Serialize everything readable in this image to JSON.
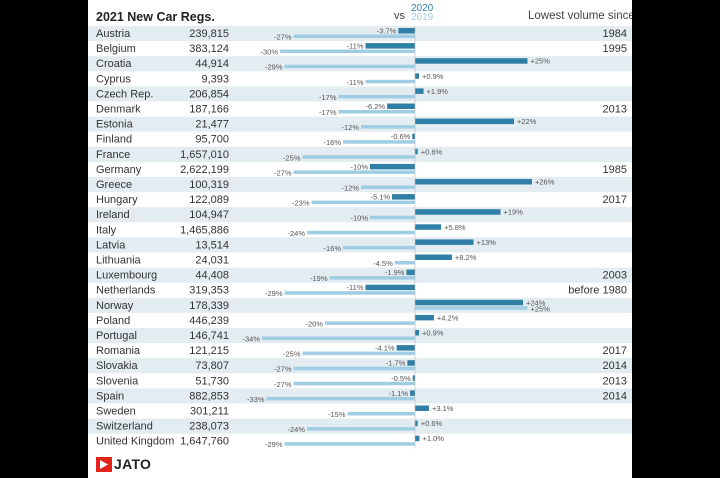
{
  "header": {
    "title": "2021 New Car Regs.",
    "vs": "vs",
    "legend_2020": "2020",
    "legend_2019": "2019",
    "lowest_volume_since": "Lowest volume since"
  },
  "logo": {
    "text": "JATO",
    "icon": "jato-logo-icon",
    "color": "#e2231a"
  },
  "colors": {
    "v2020": "#2f7fa6",
    "v2019": "#9fcde3",
    "stripe": "#e3ecf1"
  },
  "chart_data": {
    "type": "bar",
    "title": "2021 New Car Regs.",
    "series_names": [
      "2020",
      "2019"
    ],
    "rows": [
      {
        "country": "Austria",
        "regs": "239,815",
        "v2020": -3.7,
        "v2019": -27,
        "l2020": "-3.7%",
        "l2019": "-27%",
        "since": "1984"
      },
      {
        "country": "Belgium",
        "regs": "383,124",
        "v2020": -11,
        "v2019": -30,
        "l2020": "-11%",
        "l2019": "-30%",
        "since": "1995"
      },
      {
        "country": "Croatia",
        "regs": "44,914",
        "v2020": 25,
        "v2019": -29,
        "l2020": "+25%",
        "l2019": "-29%",
        "since": ""
      },
      {
        "country": "Cyprus",
        "regs": "9,393",
        "v2020": 0.9,
        "v2019": -11,
        "l2020": "+0.9%",
        "l2019": "-11%",
        "since": ""
      },
      {
        "country": "Czech Rep.",
        "regs": "206,854",
        "v2020": 1.9,
        "v2019": -17,
        "l2020": "+1.9%",
        "l2019": "-17%",
        "since": ""
      },
      {
        "country": "Denmark",
        "regs": "187,166",
        "v2020": -6.2,
        "v2019": -17,
        "l2020": "-6.2%",
        "l2019": "-17%",
        "since": "2013"
      },
      {
        "country": "Estonia",
        "regs": "21,477",
        "v2020": 22,
        "v2019": -12,
        "l2020": "+22%",
        "l2019": "-12%",
        "since": ""
      },
      {
        "country": "Finland",
        "regs": "95,700",
        "v2020": -0.6,
        "v2019": -16,
        "l2020": "-0.6%",
        "l2019": "-16%",
        "since": ""
      },
      {
        "country": "France",
        "regs": "1,657,010",
        "v2020": 0.6,
        "v2019": -25,
        "l2020": "+0.6%",
        "l2019": "-25%",
        "since": ""
      },
      {
        "country": "Germany",
        "regs": "2,622,199",
        "v2020": -10,
        "v2019": -27,
        "l2020": "-10%",
        "l2019": "-27%",
        "since": "1985"
      },
      {
        "country": "Greece",
        "regs": "100,319",
        "v2020": 26,
        "v2019": -12,
        "l2020": "+26%",
        "l2019": "-12%",
        "since": ""
      },
      {
        "country": "Hungary",
        "regs": "122,089",
        "v2020": -5.1,
        "v2019": -23,
        "l2020": "-5.1%",
        "l2019": "-23%",
        "since": "2017"
      },
      {
        "country": "Ireland",
        "regs": "104,947",
        "v2020": 19,
        "v2019": -10,
        "l2020": "+19%",
        "l2019": "-10%",
        "since": ""
      },
      {
        "country": "Italy",
        "regs": "1,465,886",
        "v2020": 5.8,
        "v2019": -24,
        "l2020": "+5.8%",
        "l2019": "-24%",
        "since": ""
      },
      {
        "country": "Latvia",
        "regs": "13,514",
        "v2020": 13,
        "v2019": -16,
        "l2020": "+13%",
        "l2019": "-16%",
        "since": ""
      },
      {
        "country": "Lithuania",
        "regs": "24,031",
        "v2020": 8.2,
        "v2019": -4.5,
        "l2020": "+8.2%",
        "l2019": "-4.5%",
        "since": ""
      },
      {
        "country": "Luxembourg",
        "regs": "44,408",
        "v2020": -1.9,
        "v2019": -19,
        "l2020": "-1.9%",
        "l2019": "-19%",
        "since": "2003"
      },
      {
        "country": "Netherlands",
        "regs": "319,353",
        "v2020": -11,
        "v2019": -29,
        "l2020": "-11%",
        "l2019": "-29%",
        "since": "before 1980"
      },
      {
        "country": "Norway",
        "regs": "178,339",
        "v2020": 24,
        "v2019": 25,
        "l2020": "+24%",
        "l2019": "+25%",
        "since": ""
      },
      {
        "country": "Poland",
        "regs": "446,239",
        "v2020": 4.2,
        "v2019": -20,
        "l2020": "+4.2%",
        "l2019": "-20%",
        "since": ""
      },
      {
        "country": "Portugal",
        "regs": "146,741",
        "v2020": 0.9,
        "v2019": -34,
        "l2020": "+0.9%",
        "l2019": "-34%",
        "since": ""
      },
      {
        "country": "Romania",
        "regs": "121,215",
        "v2020": -4.1,
        "v2019": -25,
        "l2020": "-4.1%",
        "l2019": "-25%",
        "since": "2017"
      },
      {
        "country": "Slovakia",
        "regs": "73,807",
        "v2020": -1.7,
        "v2019": -27,
        "l2020": "-1.7%",
        "l2019": "-27%",
        "since": "2014"
      },
      {
        "country": "Slovenia",
        "regs": "51,730",
        "v2020": -0.5,
        "v2019": -27,
        "l2020": "-0.5%",
        "l2019": "-27%",
        "since": "2013"
      },
      {
        "country": "Spain",
        "regs": "882,853",
        "v2020": -1.1,
        "v2019": -33,
        "l2020": "-1.1%",
        "l2019": "-33%",
        "since": "2014"
      },
      {
        "country": "Sweden",
        "regs": "301,211",
        "v2020": 3.1,
        "v2019": -15,
        "l2020": "+3.1%",
        "l2019": "-15%",
        "since": ""
      },
      {
        "country": "Switzerland",
        "regs": "238,073",
        "v2020": 0.6,
        "v2019": -24,
        "l2020": "+0.6%",
        "l2019": "-24%",
        "since": ""
      },
      {
        "country": "United Kingdom",
        "regs": "1,647,760",
        "v2020": 1.0,
        "v2019": -29,
        "l2020": "+1.0%",
        "l2019": "-29%",
        "since": ""
      }
    ]
  }
}
